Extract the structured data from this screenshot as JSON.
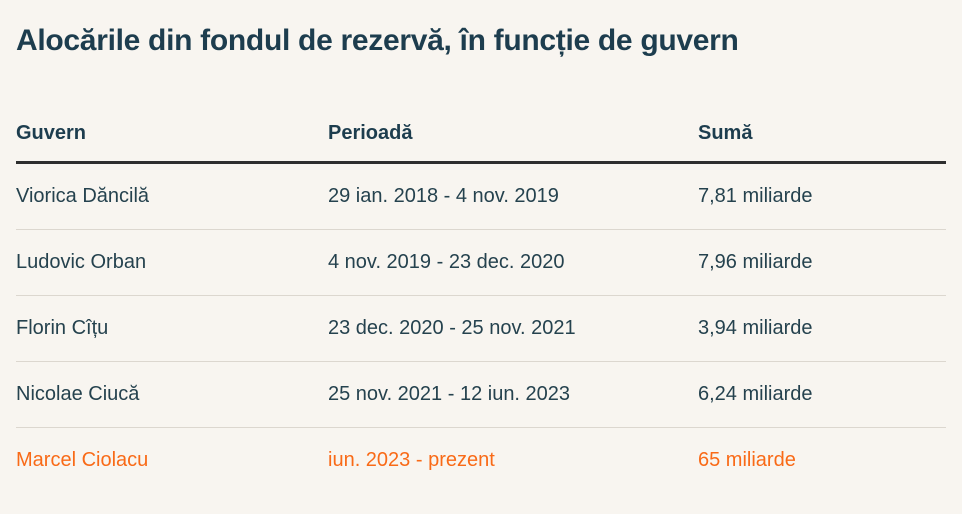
{
  "chart_data": {
    "type": "table",
    "title": "Alocările din fondul de rezervă, în funcție de guvern",
    "columns": [
      "Guvern",
      "Perioadă",
      "Sumă"
    ],
    "rows": [
      [
        "Viorica Dăncilă",
        "29 ian. 2018 - 4 nov. 2019",
        "7,81 miliarde"
      ],
      [
        "Ludovic Orban",
        "4 nov. 2019 - 23 dec. 2020",
        "7,96 miliarde"
      ],
      [
        "Florin Cîțu",
        "23 dec. 2020 - 25 nov. 2021",
        "3,94 miliarde"
      ],
      [
        "Nicolae Ciucă",
        "25 nov. 2021 - 12 iun. 2023",
        "6,24 miliarde"
      ],
      [
        "Marcel Ciolacu",
        "iun. 2023 - prezent",
        "65 miliarde"
      ]
    ],
    "values_miliarde": [
      7.81,
      7.96,
      3.94,
      6.24,
      65
    ],
    "highlighted_row_index": 4,
    "legend_position": "none",
    "grid": "horizontal-row-separators"
  },
  "colors": {
    "background": "#f8f5f0",
    "text_dark": "#1d3d4e",
    "text_body": "#25424e",
    "accent_orange": "#f96a17",
    "header_rule": "#2e2e2e",
    "row_rule": "#dcd7cf"
  }
}
